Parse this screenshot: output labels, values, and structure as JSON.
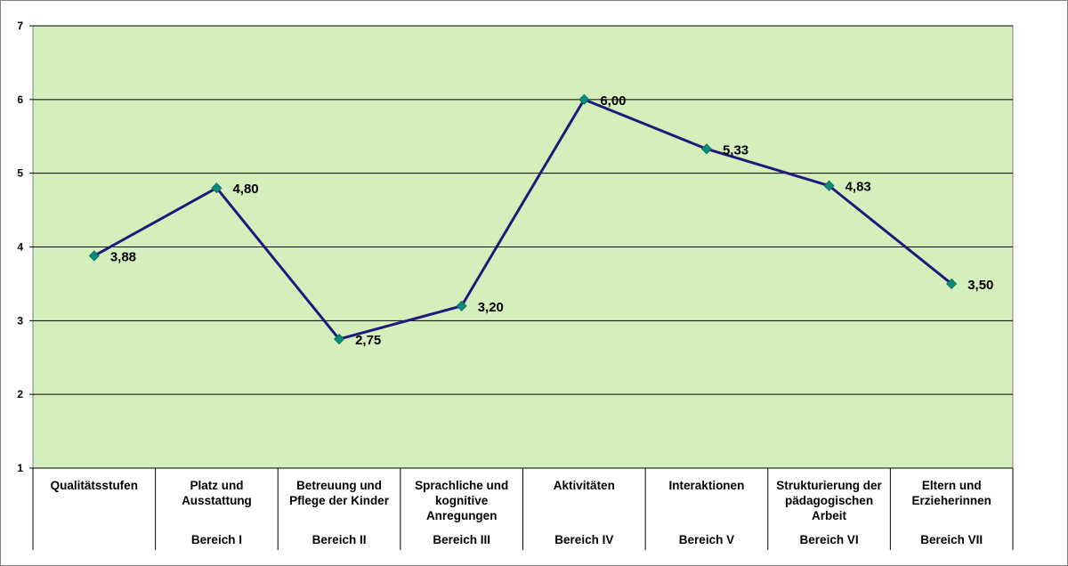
{
  "chart_data": {
    "type": "line",
    "title": "",
    "xlabel": "",
    "ylabel": "",
    "ylim": [
      1,
      7
    ],
    "yticks": [
      "1",
      "2",
      "3",
      "4",
      "5",
      "6",
      "7"
    ],
    "grid": true,
    "legend": "none",
    "categories": [
      {
        "label": "Qualitätsstufen",
        "sub": ""
      },
      {
        "label": "Platz und Ausstattung",
        "sub": "Bereich I"
      },
      {
        "label": "Betreuung und Pflege der Kinder",
        "sub": "Bereich II"
      },
      {
        "label": "Sprachliche und kognitive Anregungen",
        "sub": "Bereich III"
      },
      {
        "label": "Aktivitäten",
        "sub": "Bereich IV"
      },
      {
        "label": "Interaktionen",
        "sub": "Bereich V"
      },
      {
        "label": "Strukturierung der pädagogischen Arbeit",
        "sub": "Bereich VI"
      },
      {
        "label": "Eltern und Erzieherinnen",
        "sub": "Bereich VII"
      }
    ],
    "series": [
      {
        "values": [
          3.88,
          4.8,
          2.75,
          3.2,
          6.0,
          5.33,
          4.83,
          3.5
        ],
        "labels": [
          "3,88",
          "4,80",
          "2,75",
          "3,20",
          "6,00",
          "5,33",
          "4,83",
          "3,50"
        ]
      }
    ],
    "colors": {
      "plot_background": "#d4eebc",
      "line": "#1f1a7a",
      "marker": "#0e8a7a",
      "gridline": "#000000"
    }
  }
}
